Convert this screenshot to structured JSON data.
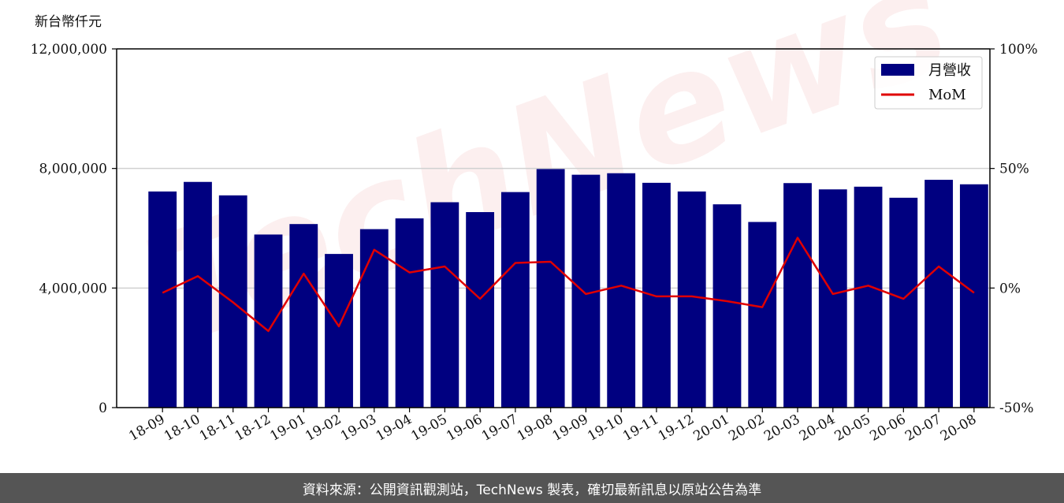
{
  "chart_data": {
    "type": "bar",
    "y_unit_label": "新台幣仟元",
    "categories": [
      "18-09",
      "18-10",
      "18-11",
      "18-12",
      "19-01",
      "19-02",
      "19-03",
      "19-04",
      "19-05",
      "19-06",
      "19-07",
      "19-08",
      "19-09",
      "19-10",
      "19-11",
      "19-12",
      "20-01",
      "20-02",
      "20-03",
      "20-04",
      "20-05",
      "20-06",
      "20-07",
      "20-08"
    ],
    "series": [
      {
        "name": "月營收",
        "axis": "left",
        "color": "#000080",
        "values": [
          7230000,
          7550000,
          7100000,
          5790000,
          6140000,
          5140000,
          5970000,
          6330000,
          6870000,
          6540000,
          7210000,
          7980000,
          7790000,
          7840000,
          7520000,
          7230000,
          6800000,
          6210000,
          7510000,
          7300000,
          7390000,
          7020000,
          7620000,
          7470000
        ]
      },
      {
        "name": "MoM",
        "axis": "right",
        "type": "line",
        "color": "#e00000",
        "values": [
          -2.0,
          5.0,
          -6.0,
          -18.0,
          6.0,
          -16.0,
          16.0,
          6.5,
          9.0,
          -4.5,
          10.5,
          11.0,
          -2.5,
          1.0,
          -3.5,
          -3.5,
          -5.5,
          -8.0,
          21.0,
          -2.5,
          1.0,
          -4.5,
          9.0,
          -2.0
        ]
      }
    ],
    "y_left": {
      "ylim": [
        0,
        12000000
      ],
      "ticks": [
        0,
        4000000,
        8000000,
        12000000
      ],
      "tick_labels": [
        "0",
        "4,000,000",
        "8,000,000",
        "12,000,000"
      ]
    },
    "y_right": {
      "ylim": [
        -50,
        100
      ],
      "ticks": [
        -50,
        0,
        50,
        100
      ],
      "tick_labels": [
        "-50%",
        "0%",
        "50%",
        "100%"
      ]
    },
    "grid": "horizontal",
    "legend_position": "top-right",
    "watermark": "TechNews"
  },
  "footer": {
    "text": "資料來源：公開資訊觀測站，TechNews 製表，確切最新訊息以原站公告為準"
  }
}
